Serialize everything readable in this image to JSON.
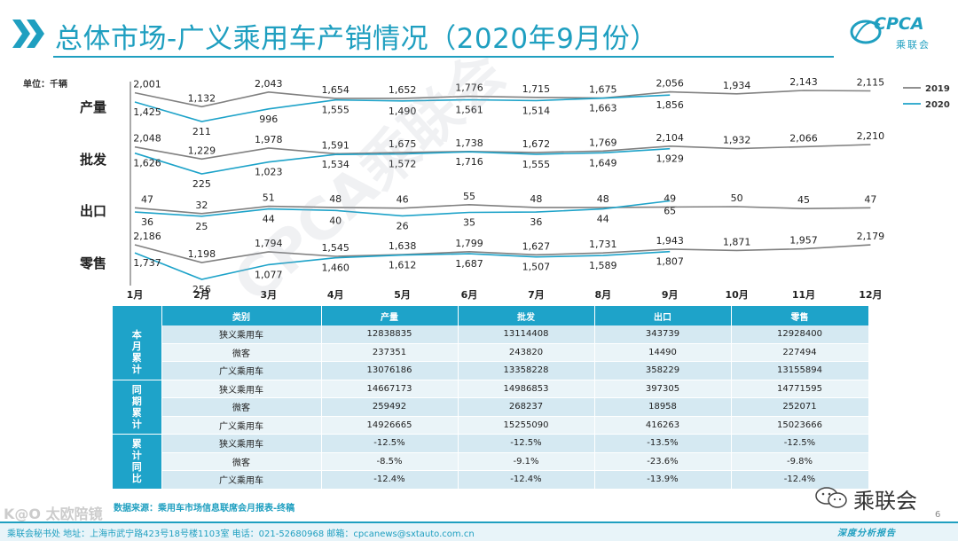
{
  "header": {
    "title": "总体市场-广义乘用车产销情况（2020年9月份）",
    "logo_text": "CPCA",
    "logo_sub": "乘联会"
  },
  "unit_label": "单位：千辆",
  "colors": {
    "accent": "#1f9fc0",
    "series_2019": "#808080",
    "series_2020": "#1ea3c9"
  },
  "chart_data": {
    "type": "line",
    "categories": [
      "1月",
      "2月",
      "3月",
      "4月",
      "5月",
      "6月",
      "7月",
      "8月",
      "9月",
      "10月",
      "11月",
      "12月"
    ],
    "legend": [
      "2019",
      "2020"
    ],
    "legend_position": "top-right",
    "panels": [
      {
        "name": "产量",
        "series": [
          {
            "name": "2019",
            "values": [
              2001,
              1132,
              2043,
              1654,
              1652,
              1776,
              1715,
              1675,
              2056,
              1934,
              2143,
              2115
            ]
          },
          {
            "name": "2020",
            "values": [
              1425,
              211,
              996,
              1555,
              1490,
              1561,
              1514,
              1663,
              1856
            ]
          }
        ]
      },
      {
        "name": "批发",
        "series": [
          {
            "name": "2019",
            "values": [
              2048,
              1229,
              1978,
              1591,
              1675,
              1738,
              1672,
              1769,
              2104,
              1932,
              2066,
              2210
            ]
          },
          {
            "name": "2020",
            "values": [
              1626,
              225,
              1023,
              1534,
              1572,
              1716,
              1555,
              1649,
              1929
            ]
          }
        ]
      },
      {
        "name": "出口",
        "series": [
          {
            "name": "2019",
            "values": [
              47,
              32,
              51,
              48,
              46,
              55,
              48,
              48,
              49,
              50,
              45,
              47
            ]
          },
          {
            "name": "2020",
            "values": [
              36,
              25,
              44,
              40,
              26,
              35,
              36,
              44,
              65
            ]
          }
        ]
      },
      {
        "name": "零售",
        "series": [
          {
            "name": "2019",
            "values": [
              2186,
              1198,
              1794,
              1545,
              1638,
              1799,
              1627,
              1731,
              1943,
              1871,
              1957,
              2179
            ]
          },
          {
            "name": "2020",
            "values": [
              1737,
              256,
              1077,
              1460,
              1612,
              1687,
              1507,
              1589,
              1807
            ]
          }
        ]
      }
    ]
  },
  "table": {
    "headers": [
      "类别",
      "产量",
      "批发",
      "出口",
      "零售"
    ],
    "groups": [
      {
        "label": "本月累计",
        "rows": [
          [
            "狭义乘用车",
            "12838835",
            "13114408",
            "343739",
            "12928400"
          ],
          [
            "微客",
            "237351",
            "243820",
            "14490",
            "227494"
          ],
          [
            "广义乘用车",
            "13076186",
            "13358228",
            "358229",
            "13155894"
          ]
        ]
      },
      {
        "label": "同期累计",
        "rows": [
          [
            "狭义乘用车",
            "14667173",
            "14986853",
            "397305",
            "14771595"
          ],
          [
            "微客",
            "259492",
            "268237",
            "18958",
            "252071"
          ],
          [
            "广义乘用车",
            "14926665",
            "15255090",
            "416263",
            "15023666"
          ]
        ]
      },
      {
        "label": "累计同比",
        "rows": [
          [
            "狭义乘用车",
            "-12.5%",
            "-12.5%",
            "-13.5%",
            "-12.5%"
          ],
          [
            "微客",
            "-8.5%",
            "-9.1%",
            "-23.6%",
            "-9.8%"
          ],
          [
            "广义乘用车",
            "-12.4%",
            "-12.4%",
            "-13.9%",
            "-12.4%"
          ]
        ]
      }
    ]
  },
  "source": "数据来源：乘用车市场信息联席会月报表-终稿",
  "wechat_label": "乘联会",
  "page_number": "6",
  "footer": "乘联会秘书处    地址：上海市武宁路423号18号楼1103室    电话：021-52680968    邮箱：cpcanews@sxtauto.com.cn",
  "footer_right": "深度分析报告",
  "watermark": "CPCA乘联会",
  "corner_watermark": "K@O 太欧陪镜"
}
